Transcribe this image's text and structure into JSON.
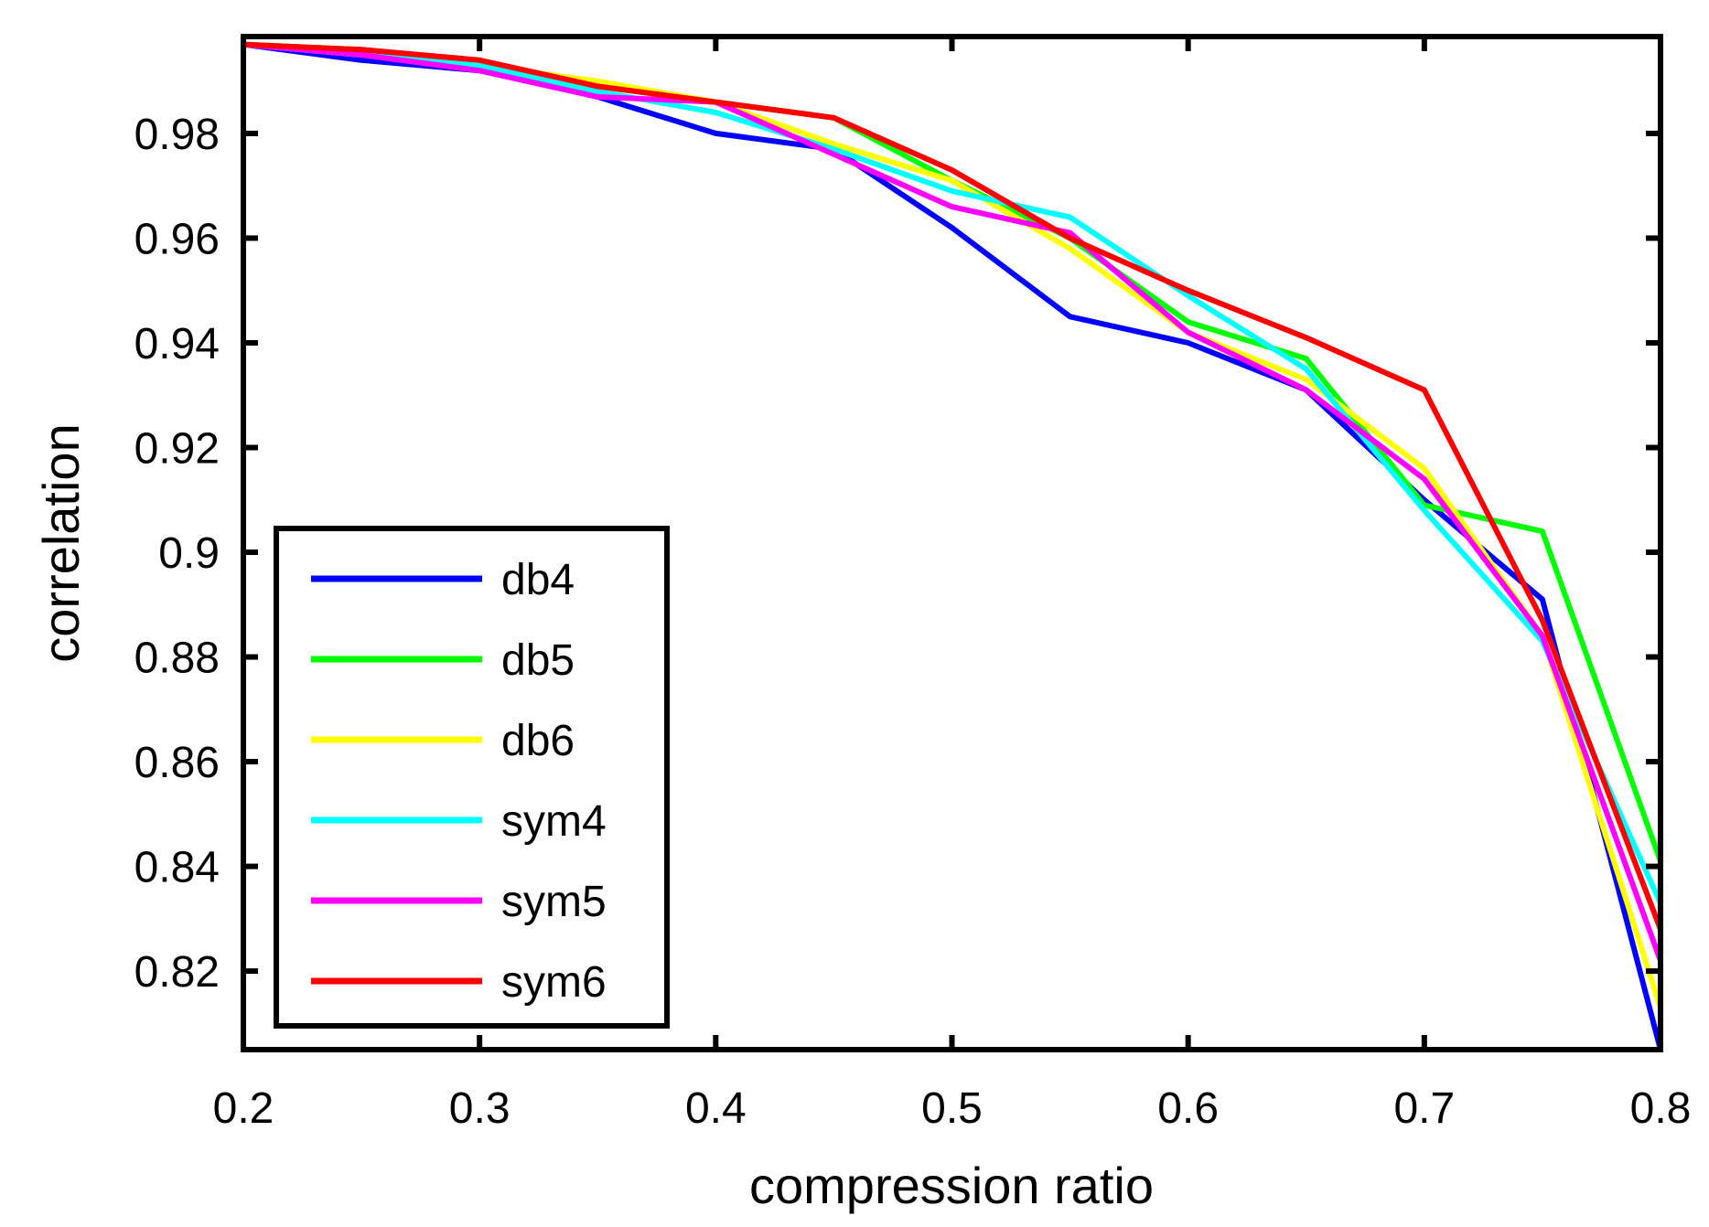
{
  "chart_data": {
    "type": "line",
    "title": "",
    "xlabel": "compression ratio",
    "ylabel": "correlation",
    "xlim": [
      0.2,
      0.8
    ],
    "ylim": [
      0.805,
      0.9985
    ],
    "xticks": [
      0.2,
      0.3,
      0.4,
      0.5,
      0.6,
      0.7,
      0.8
    ],
    "xtick_labels": [
      "0.2",
      "0.3",
      "0.4",
      "0.5",
      "0.6",
      "0.7",
      "0.8"
    ],
    "yticks": [
      0.82,
      0.84,
      0.86,
      0.88,
      0.9,
      0.92,
      0.94,
      0.96,
      0.98
    ],
    "ytick_labels": [
      "0.82",
      "0.84",
      "0.86",
      "0.88",
      "0.9",
      "0.92",
      "0.94",
      "0.96",
      "0.98"
    ],
    "grid": false,
    "legend_position": "bottom-left",
    "x": [
      0.2,
      0.25,
      0.3,
      0.35,
      0.4,
      0.45,
      0.5,
      0.55,
      0.6,
      0.65,
      0.7,
      0.75,
      0.8
    ],
    "series": [
      {
        "name": "db4",
        "color": "#0000ff",
        "values": [
          0.997,
          0.994,
          0.992,
          0.987,
          0.98,
          0.977,
          0.962,
          0.945,
          0.94,
          0.931,
          0.91,
          0.891,
          0.805
        ]
      },
      {
        "name": "db5",
        "color": "#00ff00",
        "values": [
          0.997,
          0.996,
          0.993,
          0.989,
          0.986,
          0.983,
          0.971,
          0.96,
          0.944,
          0.937,
          0.909,
          0.904,
          0.841
        ]
      },
      {
        "name": "db6",
        "color": "#ffff00",
        "values": [
          0.997,
          0.995,
          0.993,
          0.99,
          0.986,
          0.978,
          0.971,
          0.958,
          0.942,
          0.933,
          0.916,
          0.884,
          0.813
        ]
      },
      {
        "name": "sym4",
        "color": "#00ffff",
        "values": [
          0.997,
          0.995,
          0.993,
          0.988,
          0.984,
          0.977,
          0.969,
          0.964,
          0.949,
          0.935,
          0.908,
          0.883,
          0.833
        ]
      },
      {
        "name": "sym5",
        "color": "#ff00ff",
        "values": [
          0.997,
          0.995,
          0.992,
          0.987,
          0.986,
          0.976,
          0.966,
          0.961,
          0.942,
          0.931,
          0.914,
          0.884,
          0.822
        ]
      },
      {
        "name": "sym6",
        "color": "#ff0000",
        "values": [
          0.997,
          0.996,
          0.994,
          0.989,
          0.986,
          0.983,
          0.973,
          0.96,
          0.95,
          0.941,
          0.931,
          0.887,
          0.828
        ]
      }
    ]
  }
}
